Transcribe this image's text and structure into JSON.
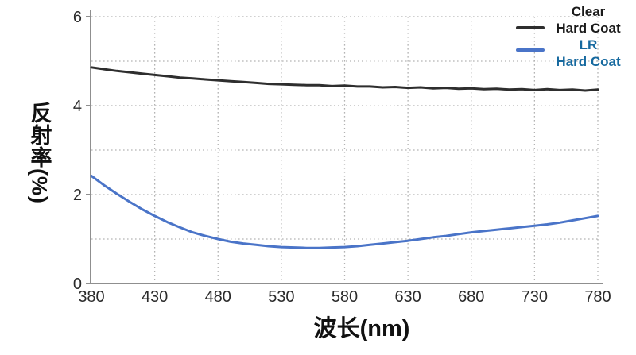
{
  "figure": {
    "y_axis_title": "反射率(%)",
    "x_axis_title": "波长(nm)"
  },
  "legend": {
    "position": "top-right",
    "entries": [
      {
        "line1": "Clear",
        "line2": "Hard Coat",
        "text_color": "#1a1a1a",
        "swatch_color": "#2e2e2e"
      },
      {
        "line1": "LR",
        "line2": "Hard Coat",
        "text_color": "#16699f",
        "swatch_color": "#4a74c8"
      }
    ]
  },
  "colors": {
    "background": "#ffffff",
    "axis": "#8f8f8f",
    "grid": "#b3b3b3",
    "tick_label": "#2b2b2b",
    "clear_hard_coat_line": "#2e2e2e",
    "lr_hard_coat_line": "#4a74c8"
  },
  "chart_data": {
    "type": "line",
    "title": "",
    "xlabel": "波长(nm)",
    "ylabel": "反射率(%)",
    "xlim": [
      380,
      780
    ],
    "ylim": [
      0,
      6
    ],
    "x_ticks": [
      380,
      430,
      480,
      530,
      580,
      630,
      680,
      730,
      780
    ],
    "y_ticks": [
      0,
      2,
      4,
      6
    ],
    "grid": "dotted horizontal lines every 1 unit, dotted vertical lines every 50 nm",
    "legend_position": "top-right",
    "x": [
      380,
      390,
      400,
      410,
      420,
      430,
      440,
      450,
      460,
      470,
      480,
      490,
      500,
      510,
      520,
      530,
      540,
      550,
      560,
      570,
      580,
      590,
      600,
      610,
      620,
      630,
      640,
      650,
      660,
      670,
      680,
      690,
      700,
      710,
      720,
      730,
      740,
      750,
      760,
      770,
      780
    ],
    "series": [
      {
        "name": "Clear Hard Coat",
        "color": "#2e2e2e",
        "values": [
          4.86,
          4.82,
          4.78,
          4.75,
          4.72,
          4.69,
          4.66,
          4.63,
          4.61,
          4.59,
          4.57,
          4.55,
          4.53,
          4.51,
          4.49,
          4.48,
          4.47,
          4.46,
          4.46,
          4.44,
          4.45,
          4.43,
          4.43,
          4.41,
          4.42,
          4.4,
          4.41,
          4.39,
          4.4,
          4.38,
          4.39,
          4.37,
          4.38,
          4.36,
          4.37,
          4.35,
          4.37,
          4.35,
          4.36,
          4.34,
          4.36
        ]
      },
      {
        "name": "LR Hard Coat",
        "color": "#4a74c8",
        "values": [
          2.42,
          2.21,
          2.02,
          1.84,
          1.67,
          1.52,
          1.38,
          1.26,
          1.15,
          1.07,
          1.0,
          0.94,
          0.9,
          0.87,
          0.84,
          0.82,
          0.81,
          0.8,
          0.8,
          0.81,
          0.82,
          0.84,
          0.87,
          0.9,
          0.93,
          0.96,
          1.0,
          1.04,
          1.07,
          1.11,
          1.15,
          1.18,
          1.21,
          1.24,
          1.27,
          1.3,
          1.33,
          1.37,
          1.42,
          1.47,
          1.52
        ]
      }
    ]
  }
}
